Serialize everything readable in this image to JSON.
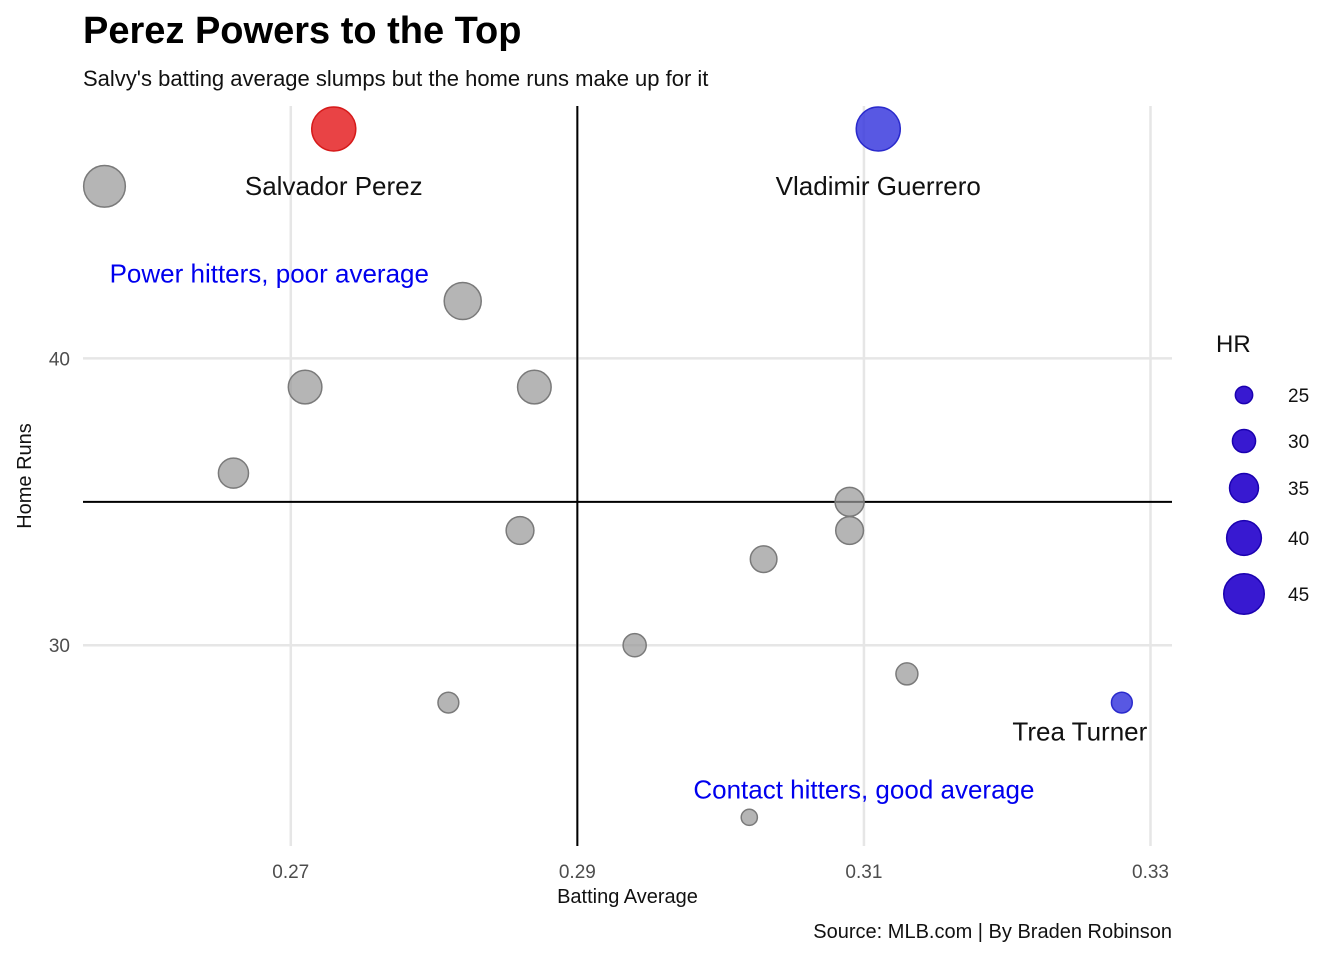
{
  "title": "Perez Powers to the Top",
  "subtitle": "Salvy's batting average slumps but the home runs make up for it",
  "caption": "Source: MLB.com | By Braden Robinson",
  "chart_data": {
    "type": "scatter",
    "xlabel": "Batting Average",
    "ylabel": "Home Runs",
    "xlim": [
      0.2555,
      0.3315
    ],
    "ylim": [
      23.0,
      48.8
    ],
    "x_ticks": [
      "0.27",
      "0.29",
      "0.31",
      "0.33"
    ],
    "x_tick_values": [
      0.27,
      0.29,
      0.31,
      0.33
    ],
    "y_ticks": [
      "30",
      "40"
    ],
    "y_tick_values": [
      30,
      40
    ],
    "grid": true,
    "reference_lines": {
      "x": 0.29,
      "y": 35
    },
    "colors": {
      "highlight_red": "#e41a1c",
      "highlight_blue": "#3333dd",
      "other": "#999999",
      "legend": "#2200cc"
    },
    "points": [
      {
        "x": 0.273,
        "y": 48,
        "hr": 48,
        "color": "red",
        "label": "Salvador Perez"
      },
      {
        "x": 0.311,
        "y": 48,
        "hr": 48,
        "color": "blue",
        "label": "Vladimir Guerrero"
      },
      {
        "x": 0.328,
        "y": 28,
        "hr": 28,
        "color": "blue",
        "label": "Trea Turner"
      },
      {
        "x": 0.257,
        "y": 46,
        "hr": 46,
        "color": "grey"
      },
      {
        "x": 0.282,
        "y": 42,
        "hr": 42,
        "color": "grey"
      },
      {
        "x": 0.271,
        "y": 39,
        "hr": 39,
        "color": "grey"
      },
      {
        "x": 0.287,
        "y": 39,
        "hr": 39,
        "color": "grey"
      },
      {
        "x": 0.266,
        "y": 36,
        "hr": 36,
        "color": "grey"
      },
      {
        "x": 0.286,
        "y": 34,
        "hr": 34,
        "color": "grey"
      },
      {
        "x": 0.309,
        "y": 35,
        "hr": 35,
        "color": "grey"
      },
      {
        "x": 0.309,
        "y": 34,
        "hr": 34,
        "color": "grey"
      },
      {
        "x": 0.303,
        "y": 33,
        "hr": 33,
        "color": "grey"
      },
      {
        "x": 0.294,
        "y": 30,
        "hr": 30,
        "color": "grey"
      },
      {
        "x": 0.313,
        "y": 29,
        "hr": 29,
        "color": "grey"
      },
      {
        "x": 0.281,
        "y": 28,
        "hr": 28,
        "color": "grey"
      },
      {
        "x": 0.302,
        "y": 24,
        "hr": 24,
        "color": "grey"
      }
    ],
    "annotations": [
      {
        "text": "Power hitters, poor average",
        "x": 0.2685,
        "y": 43.0
      },
      {
        "text": "Contact hitters, good average",
        "x": 0.31,
        "y": 25.0
      }
    ],
    "legend": {
      "title": "HR",
      "placement": "right",
      "entries": [
        {
          "label": "25",
          "hr": 25
        },
        {
          "label": "30",
          "hr": 30
        },
        {
          "label": "35",
          "hr": 35
        },
        {
          "label": "40",
          "hr": 40
        },
        {
          "label": "45",
          "hr": 45
        }
      ]
    }
  }
}
